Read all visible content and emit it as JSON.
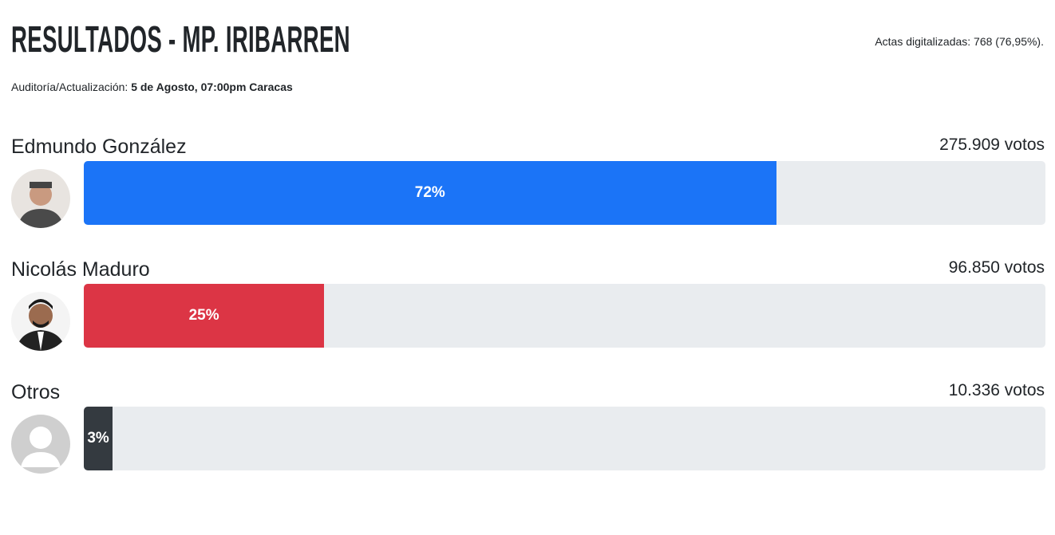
{
  "header": {
    "title": "RESULTADOS - MP. IRIBARREN",
    "actas": "Actas digitalizadas: 768 (76,95%).",
    "update_label": "Auditoría/Actualización:",
    "update_value": "5 de Agosto, 07:00pm Caracas"
  },
  "candidates": [
    {
      "name": "Edmundo González",
      "votes": "275.909 votos",
      "percent": 72,
      "percent_label": "72%",
      "color": "#1b74f7"
    },
    {
      "name": "Nicolás Maduro",
      "votes": "96.850 votos",
      "percent": 25,
      "percent_label": "25%",
      "color": "#dc3545"
    },
    {
      "name": "Otros",
      "votes": "10.336 votos",
      "percent": 3,
      "percent_label": "3%",
      "color": "#343a40"
    }
  ]
}
